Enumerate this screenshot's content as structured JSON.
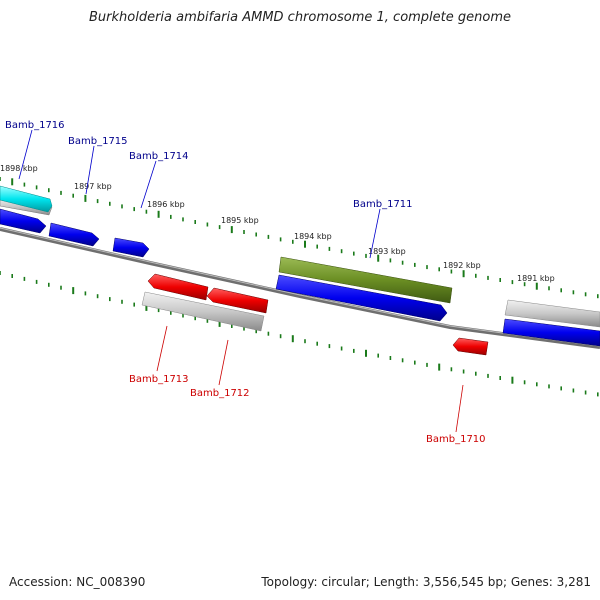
{
  "title": "Burkholderia ambifaria AMMD chromosome 1, complete genome",
  "footer": {
    "accession": "Accession: NC_008390",
    "topology": "Topology: circular; Length: 3,556,545 bp; Genes: 3,281"
  },
  "colors": {
    "forward_gene": "#0000ee",
    "reverse_gene": "#ee0000",
    "highlight_gene": "#6b8e23",
    "cyan_gene": "#00e5ee",
    "backbone": "#808080",
    "ticks": "#1a7a1a",
    "forward_label": "#00008b",
    "reverse_label": "#cc0000"
  },
  "kbp_labels": [
    "1898 kbp",
    "1897 kbp",
    "1896 kbp",
    "1895 kbp",
    "1894 kbp",
    "1893 kbp",
    "1892 kbp",
    "1891 kbp"
  ],
  "gene_labels": {
    "forward": [
      "Bamb_1716",
      "Bamb_1715",
      "Bamb_1714",
      "Bamb_1711"
    ],
    "reverse": [
      "Bamb_1713",
      "Bamb_1712",
      "Bamb_1710"
    ]
  }
}
